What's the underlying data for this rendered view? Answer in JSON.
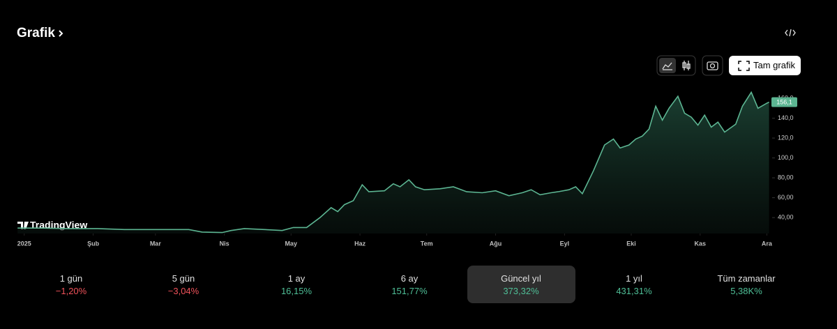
{
  "header": {
    "title": "Grafik"
  },
  "toolbar": {
    "button": "Tam grafik"
  },
  "watermark": "TradingView",
  "chart_data": {
    "type": "area",
    "x": [
      -3,
      8,
      20,
      33,
      45,
      61,
      74,
      80,
      89,
      93,
      99,
      108,
      116,
      121,
      127,
      133,
      138,
      141,
      144,
      148,
      152,
      155,
      162,
      166,
      169,
      173,
      176,
      180,
      187,
      193,
      199,
      206,
      212,
      218,
      224,
      228,
      232,
      237,
      240,
      245,
      248,
      251,
      256,
      261,
      265,
      268,
      272,
      275,
      278,
      281,
      284,
      287,
      290,
      294,
      297,
      300,
      303,
      306,
      309,
      312,
      315,
      320,
      323,
      327,
      330,
      334,
      335
    ],
    "values": [
      29.5,
      29.5,
      29,
      29,
      28,
      28,
      28,
      25.5,
      25,
      27,
      29,
      28,
      27,
      30,
      30,
      40,
      50,
      46,
      53,
      57,
      73,
      66,
      67,
      74,
      71,
      78,
      71,
      68,
      69,
      71,
      66,
      65,
      67,
      62,
      65,
      68,
      63,
      65,
      66,
      68,
      71,
      64,
      87,
      113,
      119,
      110,
      113,
      119,
      122,
      129,
      152,
      138,
      150,
      162,
      145,
      141,
      133,
      143,
      131,
      136,
      126,
      134,
      152,
      166,
      150,
      155,
      156.1
    ],
    "xlim": [
      -4,
      337
    ],
    "xticks": [
      {
        "value": 0,
        "label": "2025"
      },
      {
        "value": 31,
        "label": "Şub"
      },
      {
        "value": 59,
        "label": "Mar"
      },
      {
        "value": 90,
        "label": "Nis"
      },
      {
        "value": 120,
        "label": "May"
      },
      {
        "value": 151,
        "label": "Haz"
      },
      {
        "value": 181,
        "label": "Tem"
      },
      {
        "value": 212,
        "label": "Ağu"
      },
      {
        "value": 243,
        "label": "Eyl"
      },
      {
        "value": 273,
        "label": "Eki"
      },
      {
        "value": 304,
        "label": "Kas"
      },
      {
        "value": 334,
        "label": "Ara"
      }
    ],
    "ylim": [
      24,
      167
    ],
    "yticks": [
      {
        "value": 40,
        "label": "40,00"
      },
      {
        "value": 60,
        "label": "60,00"
      },
      {
        "value": 80,
        "label": "80,00"
      },
      {
        "value": 100,
        "label": "100,0"
      },
      {
        "value": 120,
        "label": "120,0"
      },
      {
        "value": 140,
        "label": "140,0"
      },
      {
        "value": 160,
        "label": "160,0"
      }
    ],
    "color": "#5cb592",
    "last_value": {
      "value": 156.1,
      "label": "156,1"
    }
  },
  "periods": [
    {
      "name": "1 gün",
      "change": "−1,20%",
      "color": "#f0525a"
    },
    {
      "name": "5 gün",
      "change": "−3,04%",
      "color": "#f0525a"
    },
    {
      "name": "1 ay",
      "change": "16,15%",
      "color": "#4fbf97"
    },
    {
      "name": "6 ay",
      "change": "151,77%",
      "color": "#4fbf97"
    },
    {
      "name": "Güncel yıl",
      "change": "373,32%",
      "color": "#4fbf97"
    },
    {
      "name": "1 yıl",
      "change": "431,31%",
      "color": "#4fbf97"
    },
    {
      "name": "Tüm zamanlar",
      "change": "5,38K%",
      "color": "#4fbf97"
    }
  ],
  "selected_period": 4
}
